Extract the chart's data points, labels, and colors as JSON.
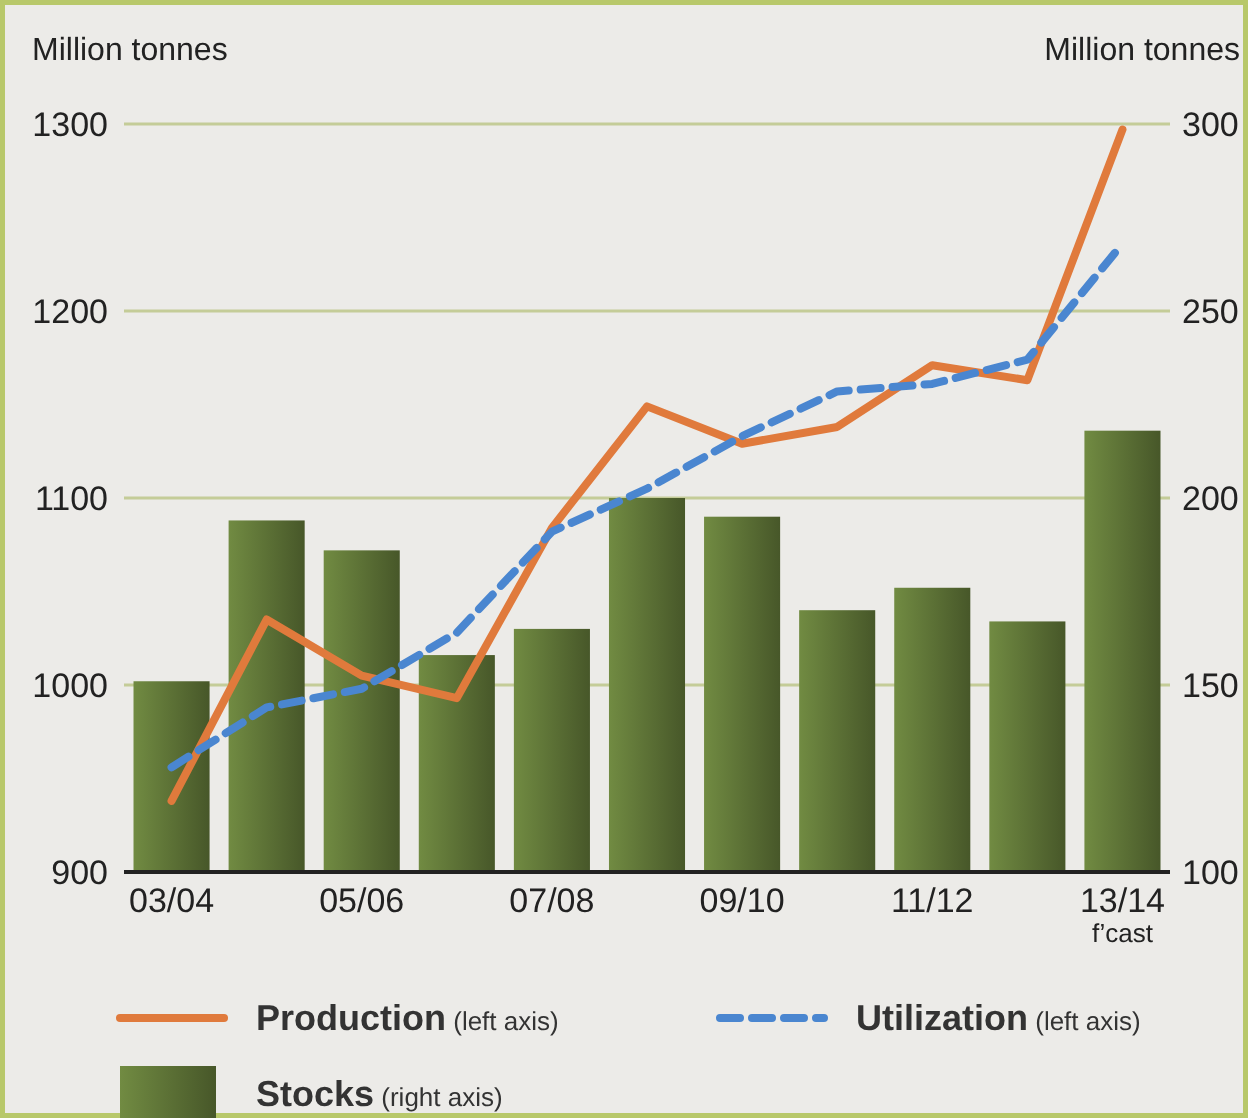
{
  "chart_data": {
    "type": "bar",
    "ylabel": "Million tonnes",
    "y2label": "Million tonnes",
    "categories": [
      "03/04",
      null,
      "05/06",
      null,
      "07/08",
      null,
      "09/10",
      null,
      "11/12",
      null,
      "13/14 f’cast"
    ],
    "series": [
      {
        "name": "Stocks (right axis)",
        "axis": "y2",
        "color": "#5b7035",
        "values": [
          151,
          194,
          186,
          158,
          165,
          200,
          195,
          170,
          176,
          167,
          218
        ]
      },
      {
        "name": "Production (left axis)",
        "type": "line",
        "color": "#e07a3c",
        "line_style": "solid",
        "values": [
          938,
          1035,
          1005,
          993,
          1084,
          1149,
          1129,
          1138,
          1171,
          1163,
          1297
        ]
      },
      {
        "name": "Utilization (left axis)",
        "type": "line",
        "color": "#4a86d0",
        "line_style": "dashed",
        "values": [
          956,
          988,
          998,
          1028,
          1082,
          1105,
          1133,
          1157,
          1161,
          1174,
          1236
        ]
      }
    ],
    "ylim": [
      900,
      1300
    ],
    "yticks": [
      900,
      1000,
      1100,
      1200,
      1300
    ],
    "y2lim": [
      100,
      300
    ],
    "y2ticks": [
      100,
      150,
      200,
      250,
      300
    ],
    "grid": "y",
    "legend": "bottom"
  }
}
